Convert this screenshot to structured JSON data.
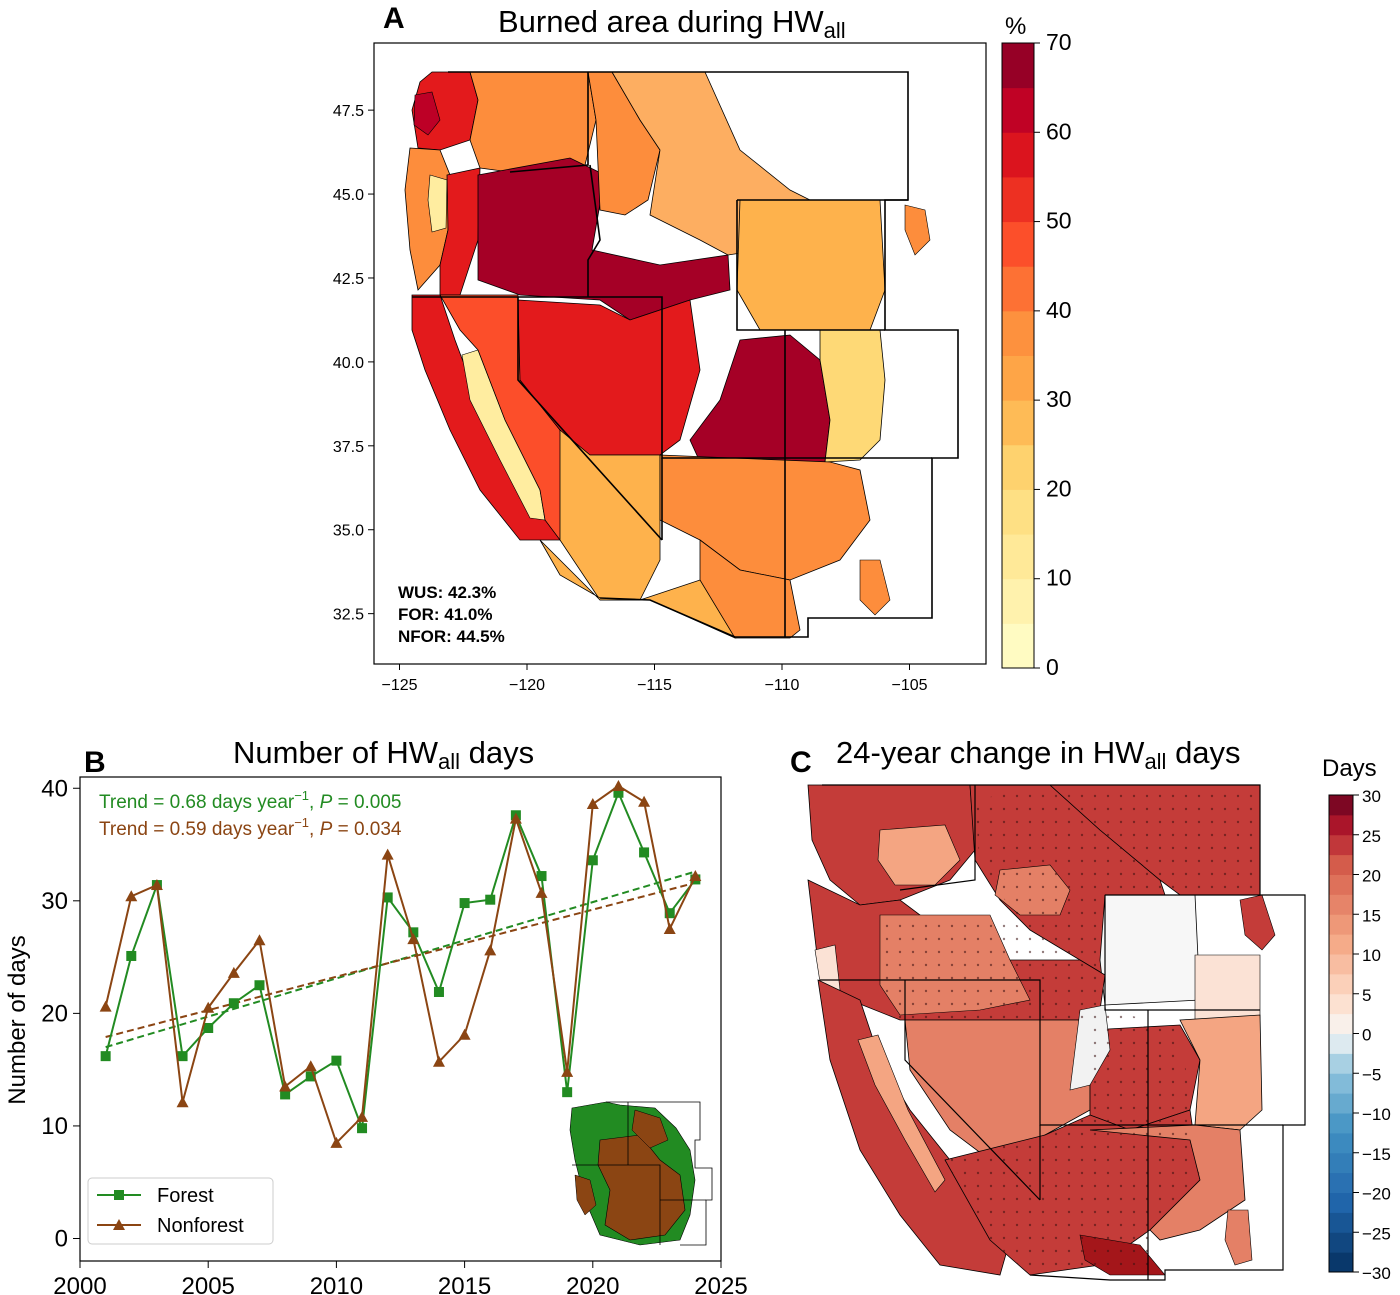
{
  "panelA": {
    "letter": "A",
    "title_main": "Burned area during HW",
    "title_sub": "all",
    "colorbar_unit": "%",
    "colorbar_ticks": [
      "0",
      "10",
      "20",
      "30",
      "40",
      "50",
      "60",
      "70"
    ],
    "colorbar_range": [
      0,
      70
    ],
    "colormap": "YlOrRd",
    "xticks": [
      "−125",
      "−120",
      "−115",
      "−110",
      "−105"
    ],
    "yticks": [
      "32.5",
      "35.0",
      "37.5",
      "40.0",
      "42.5",
      "45.0",
      "47.5"
    ],
    "stats": [
      "WUS: 42.3%",
      "FOR: 41.0%",
      "NFOR: 44.5%"
    ]
  },
  "panelB": {
    "letter": "B",
    "title_main": "Number of HW",
    "title_sub": "all",
    "title_end": " days",
    "trend_forest": {
      "prefix": "Trend = 0.68 days year",
      "exp": "−1",
      "mid": ", ",
      "p": "P",
      "suffix": " = 0.005"
    },
    "trend_nonforest": {
      "prefix": "Trend = 0.59 days year",
      "exp": "−1",
      "mid": ", ",
      "p": "P",
      "suffix": " = 0.034"
    },
    "legend": [
      "Forest",
      "Nonforest"
    ]
  },
  "panelC": {
    "letter": "C",
    "title_main": "24-year change in HW",
    "title_sub": "all",
    "title_end": " days",
    "colorbar_unit": "Days",
    "colorbar_ticks": [
      "−30",
      "−25",
      "−20",
      "−15",
      "−10",
      "−5",
      "0",
      "5",
      "10",
      "15",
      "20",
      "25",
      "30"
    ],
    "colorbar_range": [
      -30,
      30
    ],
    "colormap": "RdBu_r"
  },
  "colors": {
    "forest": "#228b22",
    "nonforest": "#8b4513"
  },
  "chart_data": [
    {
      "type": "heatmap",
      "panel": "A",
      "title": "Burned area during HWall",
      "xlabel": "",
      "ylabel": "",
      "xlim": [
        -126,
        -102
      ],
      "ylim": [
        31,
        49.5
      ],
      "colorbar": {
        "label": "%",
        "min": 0,
        "max": 70
      }
    },
    {
      "type": "line",
      "panel": "B",
      "title": "Number of HWall days",
      "xlabel": "",
      "ylabel": "Number of days",
      "xlim": [
        2000,
        2025
      ],
      "ylim": [
        -2,
        41
      ],
      "xticks": [
        2000,
        2005,
        2010,
        2015,
        2020,
        2025
      ],
      "yticks": [
        0,
        10,
        20,
        30,
        40
      ],
      "x": [
        2001,
        2002,
        2003,
        2004,
        2005,
        2006,
        2007,
        2008,
        2009,
        2010,
        2011,
        2012,
        2013,
        2014,
        2015,
        2016,
        2017,
        2018,
        2019,
        2020,
        2021,
        2022,
        2023,
        2024
      ],
      "series": [
        {
          "name": "Forest",
          "color": "#228b22",
          "marker": "square",
          "values": [
            16.2,
            25.1,
            31.4,
            16.2,
            18.7,
            20.9,
            22.5,
            12.8,
            14.4,
            15.8,
            9.8,
            30.3,
            27.2,
            21.9,
            29.8,
            30.1,
            37.6,
            32.2,
            13.0,
            33.6,
            39.6,
            34.3,
            28.9,
            31.9
          ],
          "trend": {
            "start": 17.0,
            "end": 32.6
          }
        },
        {
          "name": "Nonforest",
          "color": "#8b4513",
          "marker": "triangle",
          "values": [
            20.6,
            30.4,
            31.4,
            12.1,
            20.5,
            23.6,
            26.5,
            13.5,
            15.3,
            8.5,
            10.8,
            34.1,
            26.6,
            15.7,
            18.1,
            25.6,
            37.3,
            30.7,
            14.8,
            38.6,
            40.2,
            38.8,
            27.5,
            32.2
          ],
          "trend": {
            "start": 17.9,
            "end": 31.6
          }
        }
      ],
      "legend": "lower left"
    },
    {
      "type": "heatmap",
      "panel": "C",
      "title": "24-year change in HWall days",
      "colorbar": {
        "label": "Days",
        "min": -30,
        "max": 30
      }
    }
  ]
}
